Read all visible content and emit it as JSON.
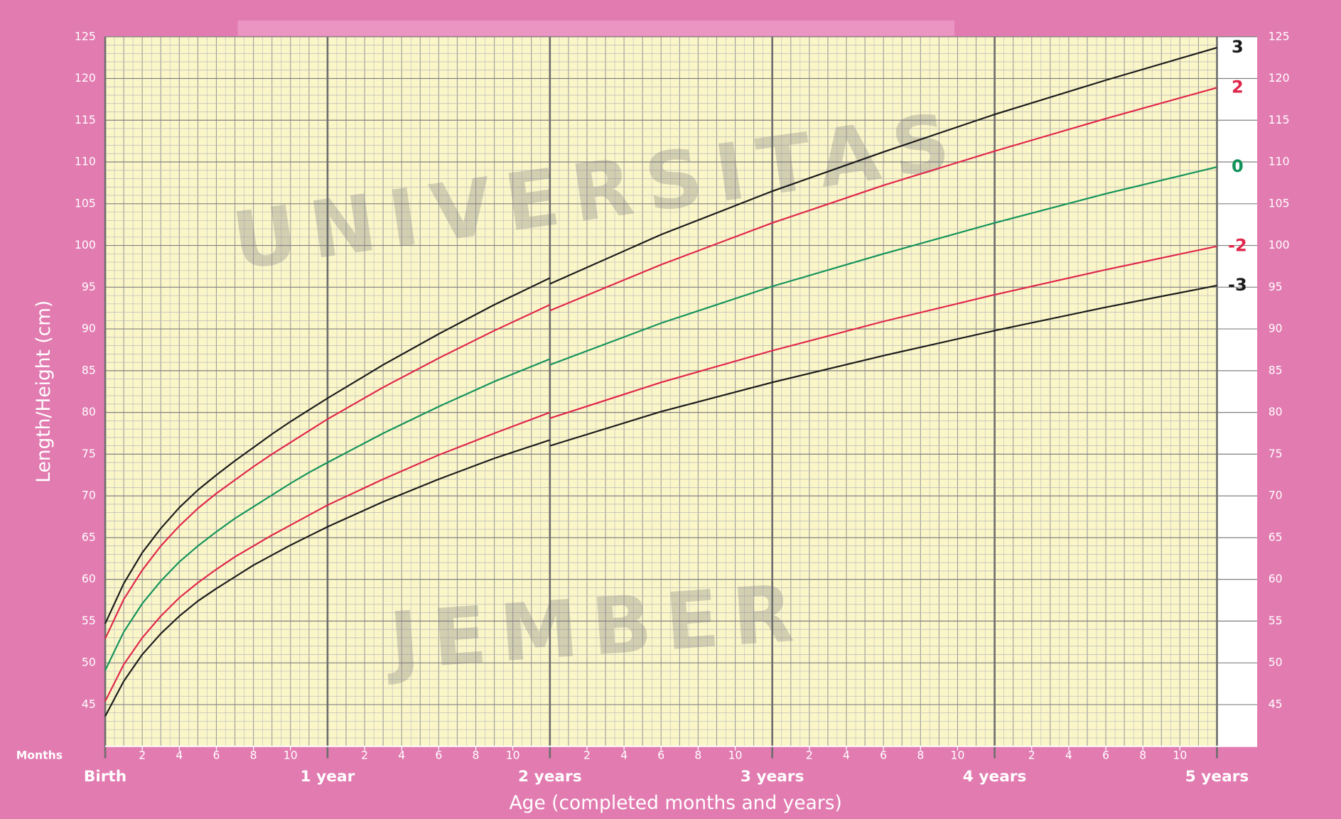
{
  "chart_data": {
    "type": "line",
    "y_label": "Length/Height (cm)",
    "x_label": "Age (completed months and years)",
    "months_label": "Months",
    "watermark": [
      "UNIVERSITAS",
      "JEMBER"
    ],
    "x": [
      0,
      1,
      2,
      3,
      4,
      5,
      6,
      7,
      8,
      9,
      10,
      11,
      12,
      15,
      18,
      21,
      24,
      24,
      24,
      30,
      36,
      42,
      48,
      54,
      60
    ],
    "series": [
      {
        "name": "3",
        "color": "#1a1a1a",
        "values": [
          54.7,
          59.5,
          63.2,
          66.1,
          68.6,
          70.7,
          72.5,
          74.2,
          75.8,
          77.4,
          78.9,
          80.3,
          81.7,
          85.7,
          89.4,
          92.9,
          96.1,
          null,
          95.4,
          101.3,
          106.5,
          111.2,
          115.7,
          119.8,
          123.7
        ]
      },
      {
        "name": "2",
        "color": "#e0264a",
        "values": [
          52.9,
          57.6,
          61.1,
          64.0,
          66.4,
          68.5,
          70.3,
          71.9,
          73.5,
          75.0,
          76.4,
          77.8,
          79.2,
          83.0,
          86.5,
          89.8,
          92.9,
          null,
          92.2,
          97.7,
          102.7,
          107.2,
          111.3,
          115.2,
          118.9
        ]
      },
      {
        "name": "0",
        "color": "#13935a",
        "values": [
          49.1,
          53.7,
          57.1,
          59.8,
          62.1,
          64.0,
          65.7,
          67.3,
          68.7,
          70.1,
          71.5,
          72.8,
          74.0,
          77.5,
          80.7,
          83.7,
          86.4,
          null,
          85.7,
          90.7,
          95.1,
          99.0,
          102.7,
          106.2,
          109.4
        ]
      },
      {
        "name": "-2",
        "color": "#e0264a",
        "values": [
          45.4,
          49.8,
          53.0,
          55.6,
          57.8,
          59.6,
          61.2,
          62.7,
          64.0,
          65.3,
          66.5,
          67.7,
          68.9,
          72.0,
          74.9,
          77.5,
          80.0,
          null,
          79.3,
          83.6,
          87.4,
          90.9,
          94.1,
          97.1,
          99.9
        ]
      },
      {
        "name": "-3",
        "color": "#1a1a1a",
        "values": [
          43.6,
          47.8,
          51.0,
          53.5,
          55.6,
          57.4,
          58.9,
          60.3,
          61.7,
          62.9,
          64.1,
          65.2,
          66.3,
          69.3,
          72.0,
          74.5,
          76.7,
          null,
          76.0,
          80.1,
          83.6,
          86.8,
          89.8,
          92.6,
          95.2
        ]
      }
    ],
    "xlim": [
      0,
      60
    ],
    "ylim": [
      40,
      125
    ],
    "yticks": [
      45,
      50,
      55,
      60,
      65,
      70,
      75,
      80,
      85,
      90,
      95,
      100,
      105,
      110,
      115,
      120,
      125
    ],
    "xticks": [
      2,
      4,
      6,
      8,
      10,
      {
        "value": 14,
        "label": "2"
      },
      {
        "value": 16,
        "label": "4"
      },
      {
        "value": 18,
        "label": "6"
      },
      {
        "value": 20,
        "label": "8"
      },
      {
        "value": 22,
        "label": "10"
      },
      {
        "value": 26,
        "label": "2"
      },
      {
        "value": 28,
        "label": "4"
      },
      {
        "value": 30,
        "label": "6"
      },
      {
        "value": 32,
        "label": "8"
      },
      {
        "value": 34,
        "label": "10"
      },
      {
        "value": 38,
        "label": "2"
      },
      {
        "value": 40,
        "label": "4"
      },
      {
        "value": 42,
        "label": "6"
      },
      {
        "value": 44,
        "label": "8"
      },
      {
        "value": 46,
        "label": "10"
      },
      {
        "value": 50,
        "label": "2"
      },
      {
        "value": 52,
        "label": "4"
      },
      {
        "value": 54,
        "label": "6"
      },
      {
        "value": 56,
        "label": "8"
      },
      {
        "value": 58,
        "label": "10"
      }
    ],
    "year_ticks": [
      {
        "value": 0,
        "label": "Birth"
      },
      {
        "value": 12,
        "label": "1 year"
      },
      {
        "value": 24,
        "label": "2 years"
      },
      {
        "value": 36,
        "label": "3 years"
      },
      {
        "value": 48,
        "label": "4 years"
      },
      {
        "value": 60,
        "label": "5 years"
      }
    ],
    "grid": true,
    "minor_grid": true
  }
}
